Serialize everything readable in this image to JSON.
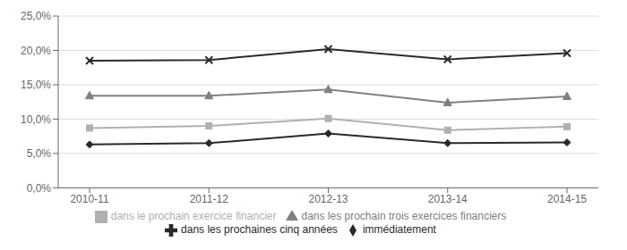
{
  "chart_data": {
    "type": "line",
    "categories": [
      "2010-11",
      "2011-12",
      "2012-13",
      "2013-14",
      "2014-15"
    ],
    "series": [
      {
        "name": "immédiatement",
        "color": "#2a2a2a",
        "marker": "diamond",
        "values": [
          0.063,
          0.065,
          0.079,
          0.065,
          0.066
        ]
      },
      {
        "name": "dans le prochain exercice financier",
        "color": "#b0b0b0",
        "marker": "square",
        "values": [
          0.087,
          0.09,
          0.101,
          0.084,
          0.089
        ]
      },
      {
        "name": "dans les prochain trois exercices financiers",
        "color": "#808080",
        "marker": "triangle",
        "values": [
          0.134,
          0.134,
          0.143,
          0.124,
          0.133
        ]
      },
      {
        "name": "dans les prochaines cinq années",
        "color": "#2a2a2a",
        "marker": "x",
        "values": [
          0.185,
          0.186,
          0.202,
          0.187,
          0.196
        ]
      }
    ],
    "ylim": [
      0.0,
      0.25
    ],
    "yticks": [
      {
        "value": 0.0,
        "label": "0,0%"
      },
      {
        "value": 0.05,
        "label": "5,0%"
      },
      {
        "value": 0.1,
        "label": "10,0%"
      },
      {
        "value": 0.15,
        "label": "15,0%"
      },
      {
        "value": 0.2,
        "label": "20,0%"
      },
      {
        "value": 0.25,
        "label": "25,0%"
      }
    ],
    "grid": true,
    "legend": "bottom"
  }
}
